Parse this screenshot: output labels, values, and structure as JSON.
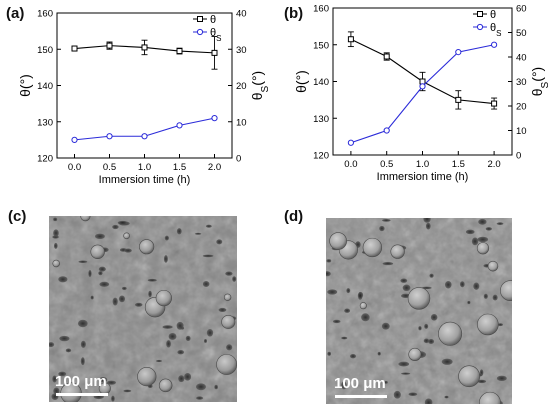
{
  "panels": {
    "a": "(a)",
    "b": "(b)",
    "c": "(c)",
    "d": "(d)"
  },
  "scale_bars": {
    "c": "100 μm",
    "d": "100 μm"
  },
  "colors": {
    "theta": "#000000",
    "theta_s": "#2b2bd9",
    "sem_base": "#8a8a8a"
  },
  "chart_data": [
    {
      "id": "a",
      "type": "line",
      "xlabel": "Immersion time (h)",
      "ylabel_left": "θ(°)",
      "ylabel_right": "θS(°)",
      "x": [
        0.0,
        0.5,
        1.0,
        1.5,
        2.0
      ],
      "xticks": [
        "0.0",
        "0.5",
        "1.0",
        "1.5",
        "2.0"
      ],
      "xlim": [
        -0.25,
        2.25
      ],
      "ylim_left": [
        120,
        160
      ],
      "yticks_left": [
        "120",
        "130",
        "140",
        "150",
        "160"
      ],
      "ylim_right": [
        0,
        40
      ],
      "yticks_right": [
        "0",
        "10",
        "20",
        "30",
        "40"
      ],
      "legend": [
        "θ",
        "θS"
      ],
      "series": [
        {
          "name": "θ",
          "axis": "left",
          "marker": "square",
          "values": [
            150.2,
            151.0,
            150.5,
            149.5,
            149.0
          ],
          "errors": [
            0.4,
            1.0,
            2.0,
            0.8,
            4.5
          ]
        },
        {
          "name": "θS",
          "axis": "right",
          "marker": "circle",
          "values": [
            5.0,
            6.0,
            6.0,
            9.0,
            11.0
          ]
        }
      ]
    },
    {
      "id": "b",
      "type": "line",
      "xlabel": "Immersion time (h)",
      "ylabel_left": "θ(°)",
      "ylabel_right": "θS(°)",
      "x": [
        0.0,
        0.5,
        1.0,
        1.5,
        2.0
      ],
      "xticks": [
        "0.0",
        "0.5",
        "1.0",
        "1.5",
        "2.0"
      ],
      "xlim": [
        -0.25,
        2.25
      ],
      "ylim_left": [
        120,
        160
      ],
      "yticks_left": [
        "120",
        "130",
        "140",
        "150",
        "160"
      ],
      "ylim_right": [
        0,
        60
      ],
      "yticks_right": [
        "0",
        "10",
        "20",
        "30",
        "40",
        "50",
        "60"
      ],
      "legend": [
        "θ",
        "θS"
      ],
      "series": [
        {
          "name": "θ",
          "axis": "left",
          "marker": "square",
          "values": [
            151.5,
            146.8,
            140.0,
            135.0,
            134.0
          ],
          "errors": [
            2.0,
            1.0,
            2.5,
            2.5,
            1.5
          ]
        },
        {
          "name": "θS",
          "axis": "right",
          "marker": "circle",
          "values": [
            5.0,
            10.0,
            28.0,
            42.0,
            45.0
          ]
        }
      ]
    }
  ]
}
